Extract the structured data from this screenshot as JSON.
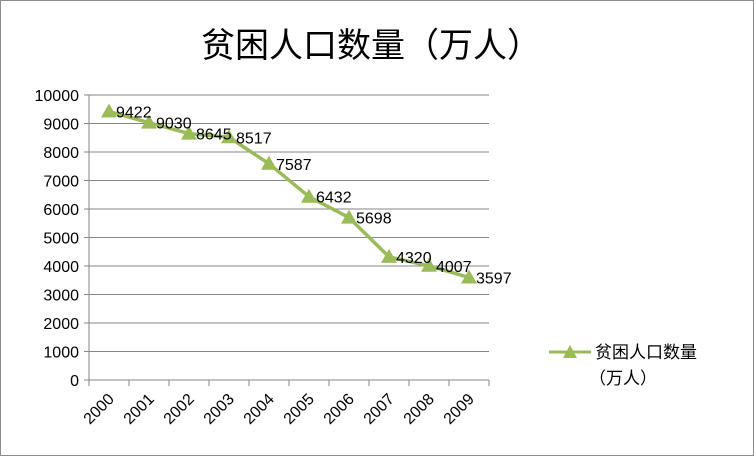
{
  "chart_data": {
    "type": "line",
    "title": "贫困人口数量（万人）",
    "categories": [
      "2000",
      "2001",
      "2002",
      "2003",
      "2004",
      "2005",
      "2006",
      "2007",
      "2008",
      "2009"
    ],
    "series": [
      {
        "name_line1": "贫困人口数量",
        "name_line2": "（万人）",
        "values": [
          9422,
          9030,
          8645,
          8517,
          7587,
          6432,
          5698,
          4320,
          4007,
          3597
        ],
        "color": "#9bbb59",
        "marker": "triangle"
      }
    ],
    "y_ticks": [
      "0",
      "1000",
      "2000",
      "3000",
      "4000",
      "5000",
      "6000",
      "7000",
      "8000",
      "9000",
      "10000"
    ],
    "ylim": [
      0,
      10000
    ],
    "grid": true,
    "legend_position": "right"
  }
}
